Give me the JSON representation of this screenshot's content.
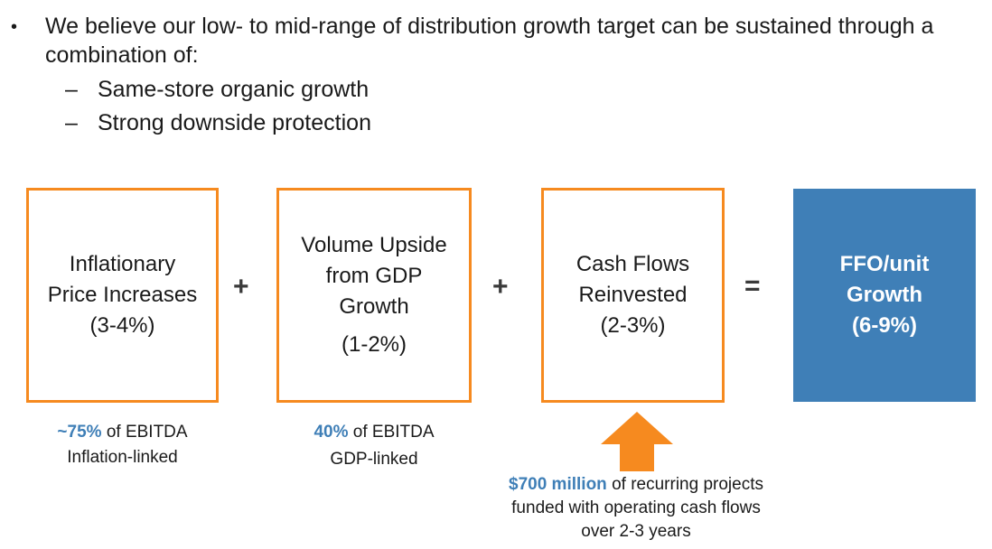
{
  "intro": {
    "bullet_glyph": "•",
    "line1": "We believe our low- to mid-range of distribution growth target can be sustained through a",
    "line2": "combination of:",
    "sub_glyph": "–",
    "sub_items": [
      "Same-store organic growth",
      "Strong downside protection"
    ]
  },
  "colors": {
    "orange": "#f68a1f",
    "blue": "#3f7fb7"
  },
  "equation": {
    "box1": {
      "lines": [
        "Inflationary",
        "Price Increases",
        "(3-4%)"
      ]
    },
    "op1": "+",
    "box2": {
      "lines": [
        "Volume Upside",
        "from GDP",
        "Growth",
        "(1-2%)"
      ]
    },
    "op2": "+",
    "box3": {
      "lines": [
        "Cash Flows",
        "Reinvested",
        "(2-3%)"
      ]
    },
    "op3": "=",
    "result": {
      "lines": [
        "FFO/unit",
        "Growth",
        "(6-9%)"
      ]
    }
  },
  "notes": {
    "note1": {
      "highlight": "~75%",
      "rest": " of EBITDA",
      "line2": "Inflation-linked"
    },
    "note2": {
      "highlight": "40%",
      "rest": " of EBITDA",
      "line2": "GDP-linked"
    },
    "note3": {
      "highlight": "$700 million",
      "rest": " of recurring projects",
      "line2": "funded with operating cash flows",
      "line3": "over 2-3 years"
    }
  }
}
